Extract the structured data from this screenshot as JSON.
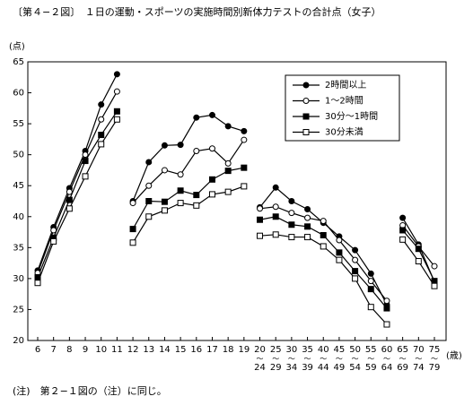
{
  "chart_data": {
    "type": "line",
    "title": "〔第４−２図〕　１日の運動・スポーツの実施時間別新体力テストの合計点（女子）",
    "y_label": "(点)",
    "x_label": "(歳)",
    "note": "(注)　第２−１図の（注）に同じ。",
    "categories": [
      "6",
      "7",
      "8",
      "9",
      "10",
      "11",
      null,
      "12",
      "13",
      "14",
      "15",
      "16",
      "17",
      "18",
      "19",
      null,
      "20〜24",
      "25〜29",
      "30〜34",
      "35〜39",
      "40〜44",
      "45〜49",
      "50〜54",
      "55〜59",
      "60〜64",
      null,
      "65〜69",
      "70〜74",
      "75〜79"
    ],
    "ylim": [
      20,
      65
    ],
    "yticks": [
      20,
      25,
      30,
      35,
      40,
      45,
      50,
      55,
      60,
      65
    ],
    "legend_position": "upper right",
    "series": [
      {
        "name": "2時間以上",
        "color": "#000000",
        "marker": "circle",
        "filled": true,
        "values": [
          31.3,
          38.3,
          44.6,
          50.6,
          58.1,
          63.0,
          null,
          42.5,
          48.8,
          51.5,
          51.6,
          56.0,
          56.4,
          54.6,
          53.8,
          null,
          41.5,
          44.7,
          42.5,
          41.2,
          39.0,
          36.8,
          34.6,
          30.8,
          25.8,
          null,
          39.8,
          35.5,
          29.5
        ]
      },
      {
        "name": "1〜2時間",
        "color": "#000000",
        "marker": "circle",
        "filled": false,
        "values": [
          30.9,
          37.8,
          44.0,
          50.0,
          55.7,
          60.2,
          null,
          42.2,
          45.0,
          47.5,
          46.8,
          50.6,
          51.0,
          48.6,
          52.4,
          null,
          41.3,
          41.6,
          40.6,
          39.8,
          39.3,
          36.2,
          33.0,
          29.6,
          26.4,
          null,
          38.6,
          35.2,
          32.0
        ]
      },
      {
        "name": "30分〜1時間",
        "color": "#000000",
        "marker": "square",
        "filled": true,
        "values": [
          30.2,
          36.6,
          42.7,
          49.0,
          53.2,
          57.0,
          null,
          38.0,
          42.5,
          42.4,
          44.2,
          43.5,
          46.0,
          47.4,
          47.9,
          null,
          39.5,
          40.0,
          38.7,
          38.4,
          37.0,
          34.2,
          31.2,
          28.3,
          25.2,
          null,
          37.8,
          34.8,
          29.6
        ]
      },
      {
        "name": "30分未満",
        "color": "#000000",
        "marker": "square",
        "filled": false,
        "values": [
          29.3,
          36.0,
          41.3,
          46.5,
          51.7,
          55.7,
          null,
          35.8,
          40.0,
          41.0,
          42.2,
          41.8,
          43.6,
          44.0,
          44.9,
          null,
          36.9,
          37.1,
          36.7,
          36.7,
          35.2,
          33.0,
          30.0,
          25.4,
          22.6,
          null,
          36.3,
          32.8,
          28.8
        ]
      }
    ]
  }
}
